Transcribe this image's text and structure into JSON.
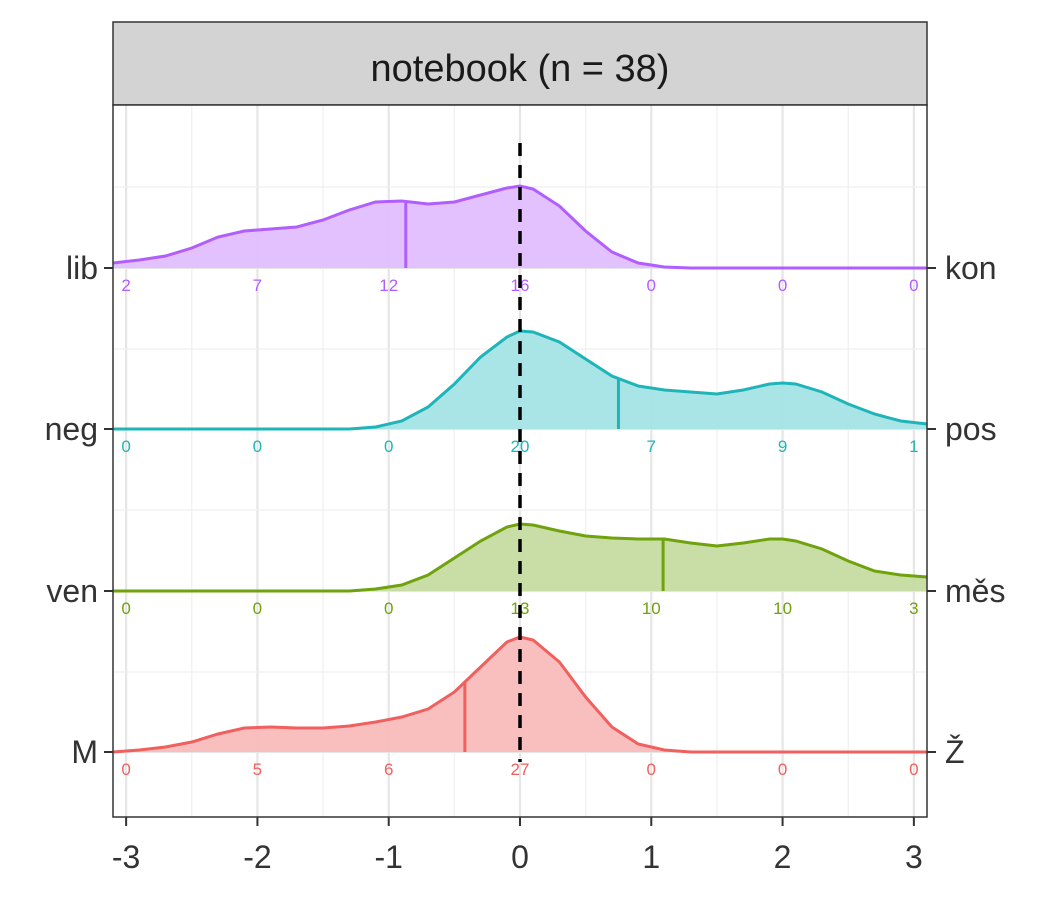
{
  "chart_data": {
    "type": "ridgeline-density",
    "facet_title": "notebook (n = 38)",
    "xlim": [
      -3.1,
      3.1
    ],
    "x_ticks": [
      -3,
      -2,
      -1,
      0,
      1,
      2,
      3
    ],
    "x_tick_labels": [
      "-3",
      "-2",
      "-1",
      "0",
      "1",
      "2",
      "3"
    ],
    "reference_line_x": 0,
    "count_positions": [
      -3,
      -2,
      -1,
      0,
      1,
      2,
      3
    ],
    "grid": true,
    "series": [
      {
        "left_label": "lib",
        "right_label": "kon",
        "color": "#B15EFF",
        "fill": "#E1BEFF",
        "mean": -0.87,
        "counts": [
          2,
          7,
          12,
          16,
          0,
          0,
          0
        ],
        "density": [
          [
            -3.1,
            0.05
          ],
          [
            -2.9,
            0.08
          ],
          [
            -2.7,
            0.12
          ],
          [
            -2.5,
            0.2
          ],
          [
            -2.3,
            0.31
          ],
          [
            -2.1,
            0.37
          ],
          [
            -1.9,
            0.39
          ],
          [
            -1.7,
            0.41
          ],
          [
            -1.5,
            0.48
          ],
          [
            -1.3,
            0.58
          ],
          [
            -1.1,
            0.66
          ],
          [
            -0.9,
            0.67
          ],
          [
            -0.7,
            0.64
          ],
          [
            -0.5,
            0.66
          ],
          [
            -0.3,
            0.73
          ],
          [
            -0.1,
            0.8
          ],
          [
            0,
            0.82
          ],
          [
            0.1,
            0.79
          ],
          [
            0.3,
            0.62
          ],
          [
            0.5,
            0.37
          ],
          [
            0.7,
            0.16
          ],
          [
            0.9,
            0.05
          ],
          [
            1.1,
            0.01
          ],
          [
            1.3,
            0
          ],
          [
            3.1,
            0
          ]
        ]
      },
      {
        "left_label": "neg",
        "right_label": "pos",
        "color": "#1FB5B8",
        "fill": "#A4E3E5",
        "mean": 0.75,
        "counts": [
          0,
          0,
          0,
          20,
          7,
          9,
          1
        ],
        "density": [
          [
            -3.1,
            0
          ],
          [
            -1.3,
            0
          ],
          [
            -1.1,
            0.02
          ],
          [
            -0.9,
            0.08
          ],
          [
            -0.7,
            0.22
          ],
          [
            -0.5,
            0.45
          ],
          [
            -0.3,
            0.72
          ],
          [
            -0.1,
            0.92
          ],
          [
            0,
            0.98
          ],
          [
            0.1,
            0.97
          ],
          [
            0.3,
            0.87
          ],
          [
            0.5,
            0.7
          ],
          [
            0.7,
            0.53
          ],
          [
            0.9,
            0.43
          ],
          [
            1.1,
            0.39
          ],
          [
            1.3,
            0.37
          ],
          [
            1.5,
            0.35
          ],
          [
            1.7,
            0.39
          ],
          [
            1.9,
            0.45
          ],
          [
            2,
            0.46
          ],
          [
            2.1,
            0.45
          ],
          [
            2.3,
            0.37
          ],
          [
            2.5,
            0.25
          ],
          [
            2.7,
            0.15
          ],
          [
            2.9,
            0.08
          ],
          [
            3.1,
            0.05
          ]
        ]
      },
      {
        "left_label": "ven",
        "right_label": "měs",
        "color": "#6FA20C",
        "fill": "#C6DCA1",
        "mean": 1.09,
        "counts": [
          0,
          0,
          0,
          13,
          10,
          10,
          3
        ],
        "density": [
          [
            -3.1,
            0
          ],
          [
            -1.3,
            0
          ],
          [
            -1.1,
            0.02
          ],
          [
            -0.9,
            0.06
          ],
          [
            -0.7,
            0.16
          ],
          [
            -0.5,
            0.33
          ],
          [
            -0.3,
            0.5
          ],
          [
            -0.1,
            0.64
          ],
          [
            0,
            0.67
          ],
          [
            0.1,
            0.66
          ],
          [
            0.3,
            0.6
          ],
          [
            0.5,
            0.55
          ],
          [
            0.7,
            0.53
          ],
          [
            0.9,
            0.52
          ],
          [
            1.1,
            0.52
          ],
          [
            1.3,
            0.48
          ],
          [
            1.5,
            0.45
          ],
          [
            1.7,
            0.48
          ],
          [
            1.9,
            0.52
          ],
          [
            2,
            0.52
          ],
          [
            2.1,
            0.5
          ],
          [
            2.3,
            0.42
          ],
          [
            2.5,
            0.3
          ],
          [
            2.7,
            0.2
          ],
          [
            2.9,
            0.16
          ],
          [
            3.1,
            0.14
          ]
        ]
      },
      {
        "left_label": "M",
        "right_label": "Ž",
        "color": "#F0605E",
        "fill": "#F9BCBA",
        "mean": -0.42,
        "counts": [
          0,
          5,
          6,
          27,
          0,
          0,
          0
        ],
        "density": [
          [
            -3.1,
            0
          ],
          [
            -2.9,
            0.02
          ],
          [
            -2.7,
            0.05
          ],
          [
            -2.5,
            0.1
          ],
          [
            -2.3,
            0.18
          ],
          [
            -2.1,
            0.24
          ],
          [
            -1.9,
            0.25
          ],
          [
            -1.7,
            0.24
          ],
          [
            -1.5,
            0.24
          ],
          [
            -1.3,
            0.26
          ],
          [
            -1.1,
            0.3
          ],
          [
            -0.9,
            0.35
          ],
          [
            -0.7,
            0.43
          ],
          [
            -0.5,
            0.6
          ],
          [
            -0.3,
            0.85
          ],
          [
            -0.1,
            1.1
          ],
          [
            0,
            1.15
          ],
          [
            0.1,
            1.12
          ],
          [
            0.3,
            0.9
          ],
          [
            0.5,
            0.55
          ],
          [
            0.7,
            0.25
          ],
          [
            0.9,
            0.08
          ],
          [
            1.1,
            0.02
          ],
          [
            1.3,
            0
          ],
          [
            3.1,
            0
          ]
        ]
      }
    ]
  }
}
